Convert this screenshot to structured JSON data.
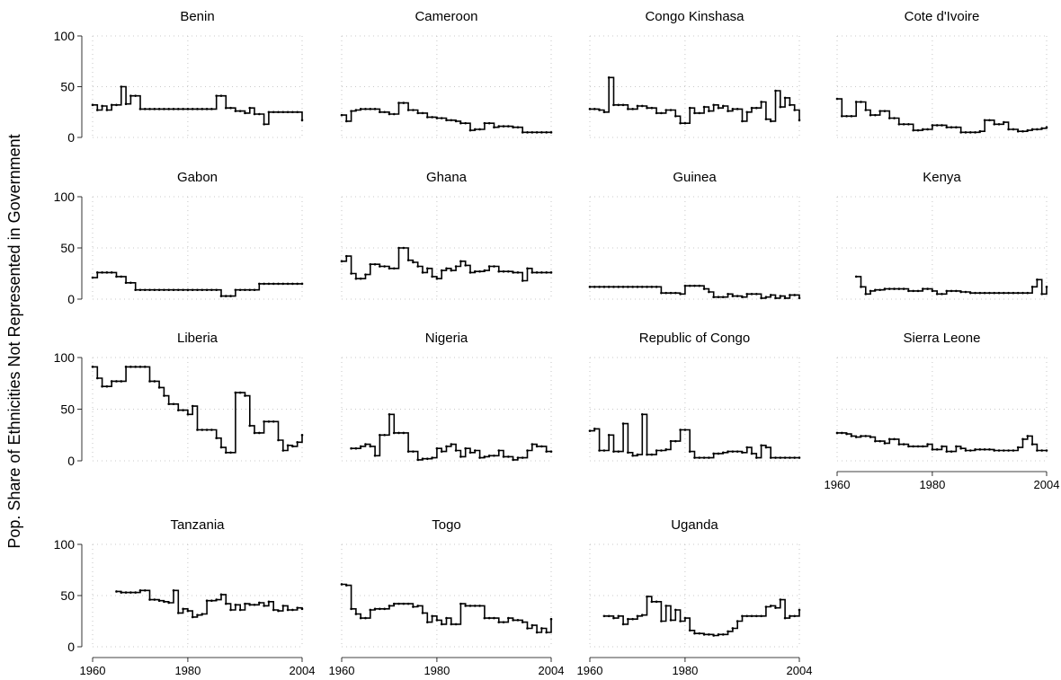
{
  "figure": {
    "ylabel": "Pop. Share of Ethnicities Not Represented in Government",
    "x_ticks": [
      1960,
      1980,
      2004
    ],
    "y_ticks": [
      0,
      50,
      100
    ],
    "xlim": [
      1960,
      2004
    ],
    "ylim": [
      0,
      100
    ]
  },
  "chart_data": [
    {
      "type": "line",
      "style": "step",
      "title": "Benin",
      "x_range": [
        1960,
        2004
      ],
      "x": [
        1960,
        1961,
        1962,
        1963,
        1964,
        1966,
        1967,
        1968,
        1970,
        1984,
        1986,
        1988,
        1990,
        1992,
        1993,
        1994,
        1996,
        1997,
        2004
      ],
      "y": [
        32,
        27,
        31,
        27,
        32,
        50,
        33,
        41,
        28,
        28,
        41,
        29,
        26,
        24,
        29,
        23,
        13,
        25,
        17
      ]
    },
    {
      "type": "line",
      "style": "step",
      "title": "Cameroon",
      "x_range": [
        1960,
        2004
      ],
      "x": [
        1960,
        1961,
        1962,
        1963,
        1964,
        1966,
        1968,
        1970,
        1972,
        1974,
        1976,
        1978,
        1980,
        1982,
        1984,
        1985,
        1987,
        1988,
        1990,
        1992,
        1993,
        1996,
        1998,
        2004
      ],
      "y": [
        22,
        16,
        26,
        27,
        28,
        28,
        25,
        23,
        34,
        27,
        24,
        20,
        19,
        17,
        16,
        14,
        7,
        8,
        14,
        10,
        11,
        10,
        5,
        5
      ]
    },
    {
      "type": "line",
      "style": "step",
      "title": "Congo Kinshasa",
      "x_range": [
        1960,
        2004
      ],
      "x": [
        1960,
        1962,
        1963,
        1964,
        1965,
        1966,
        1968,
        1970,
        1972,
        1974,
        1976,
        1978,
        1979,
        1980,
        1981,
        1982,
        1984,
        1985,
        1986,
        1987,
        1988,
        1989,
        1990,
        1992,
        1993,
        1994,
        1996,
        1997,
        1998,
        1999,
        2000,
        2001,
        2002,
        2003,
        2004
      ],
      "y": [
        28,
        27,
        25,
        59,
        32,
        32,
        28,
        31,
        29,
        24,
        27,
        21,
        14,
        14,
        29,
        24,
        30,
        26,
        32,
        29,
        31,
        26,
        28,
        16,
        25,
        29,
        35,
        18,
        16,
        46,
        30,
        39,
        32,
        27,
        17
      ]
    },
    {
      "type": "line",
      "style": "step",
      "title": "Cote d'Ivoire",
      "x_range": [
        1960,
        2004
      ],
      "x": [
        1960,
        1961,
        1963,
        1964,
        1966,
        1967,
        1969,
        1971,
        1973,
        1976,
        1978,
        1980,
        1983,
        1986,
        1990,
        1991,
        1993,
        1995,
        1996,
        1998,
        2000,
        2001,
        2003,
        2004
      ],
      "y": [
        38,
        21,
        21,
        35,
        27,
        22,
        26,
        19,
        13,
        7,
        8,
        12,
        10,
        5,
        6,
        17,
        13,
        15,
        8,
        6,
        7,
        8,
        9,
        10
      ]
    },
    {
      "type": "line",
      "style": "step",
      "title": "Gabon",
      "x_range": [
        1960,
        2004
      ],
      "x": [
        1960,
        1961,
        1965,
        1967,
        1969,
        1985,
        1987,
        1990,
        1995,
        1996,
        2004
      ],
      "y": [
        21,
        26,
        22,
        16,
        9,
        9,
        3,
        9,
        15,
        15,
        15
      ]
    },
    {
      "type": "line",
      "style": "step",
      "title": "Ghana",
      "x_range": [
        1960,
        2004
      ],
      "x": [
        1960,
        1961,
        1962,
        1963,
        1965,
        1966,
        1968,
        1970,
        1972,
        1974,
        1975,
        1976,
        1977,
        1978,
        1979,
        1980,
        1981,
        1982,
        1983,
        1984,
        1985,
        1986,
        1987,
        1988,
        1990,
        1991,
        1993,
        1996,
        1998,
        1999,
        2000,
        2004
      ],
      "y": [
        37,
        42,
        25,
        20,
        24,
        34,
        32,
        30,
        50,
        38,
        36,
        32,
        26,
        30,
        22,
        20,
        28,
        30,
        28,
        32,
        37,
        33,
        26,
        27,
        28,
        32,
        27,
        26,
        18,
        30,
        26,
        26
      ]
    },
    {
      "type": "line",
      "style": "step",
      "title": "Guinea",
      "x_range": [
        1960,
        2004
      ],
      "x": [
        1960,
        1966,
        1975,
        1978,
        1979,
        1980,
        1984,
        1985,
        1986,
        1988,
        1989,
        1990,
        1992,
        1993,
        1996,
        1997,
        1998,
        1999,
        2000,
        2001,
        2002,
        2003,
        2004
      ],
      "y": [
        12,
        12,
        6,
        6,
        5,
        13,
        10,
        7,
        2,
        2,
        5,
        3,
        2,
        5,
        1,
        2,
        4,
        1,
        3,
        1,
        4,
        4,
        1
      ]
    },
    {
      "type": "line",
      "style": "step",
      "title": "Kenya",
      "x_range": [
        1960,
        2004
      ],
      "x": [
        1964,
        1965,
        1966,
        1967,
        1968,
        1970,
        1972,
        1975,
        1976,
        1978,
        1979,
        1980,
        1981,
        1983,
        1984,
        1986,
        1988,
        1994,
        2001,
        2002,
        2003,
        2004
      ],
      "y": [
        22,
        12,
        5,
        8,
        9,
        10,
        10,
        8,
        8,
        10,
        10,
        8,
        5,
        8,
        8,
        7,
        6,
        6,
        12,
        19,
        5,
        12
      ]
    },
    {
      "type": "line",
      "style": "step",
      "title": "Liberia",
      "x_range": [
        1960,
        2004
      ],
      "x": [
        1960,
        1961,
        1962,
        1964,
        1966,
        1967,
        1971,
        1972,
        1973,
        1974,
        1975,
        1976,
        1978,
        1979,
        1980,
        1981,
        1982,
        1986,
        1987,
        1988,
        1989,
        1990,
        1992,
        1993,
        1994,
        1996,
        1998,
        1999,
        2000,
        2001,
        2002,
        2003,
        2004
      ],
      "y": [
        91,
        80,
        72,
        77,
        77,
        91,
        91,
        77,
        77,
        71,
        63,
        55,
        49,
        49,
        45,
        53,
        30,
        22,
        13,
        8,
        8,
        66,
        63,
        34,
        27,
        38,
        38,
        20,
        10,
        15,
        14,
        18,
        25
      ]
    },
    {
      "type": "line",
      "style": "step",
      "title": "Nigeria",
      "x_range": [
        1960,
        2004
      ],
      "x": [
        1962,
        1964,
        1965,
        1966,
        1967,
        1968,
        1969,
        1970,
        1971,
        1972,
        1974,
        1975,
        1976,
        1977,
        1979,
        1980,
        1981,
        1982,
        1983,
        1984,
        1985,
        1986,
        1987,
        1988,
        1989,
        1990,
        1991,
        1993,
        1994,
        1996,
        1997,
        1998,
        1999,
        2000,
        2001,
        2002,
        2003,
        2004
      ],
      "y": [
        12,
        14,
        16,
        14,
        5,
        25,
        25,
        45,
        27,
        27,
        9,
        9,
        1,
        2,
        3,
        12,
        9,
        14,
        16,
        10,
        4,
        12,
        8,
        10,
        3,
        4,
        5,
        10,
        4,
        1,
        3,
        3,
        10,
        16,
        14,
        14,
        9,
        9
      ]
    },
    {
      "type": "line",
      "style": "step",
      "title": "Republic of Congo",
      "x_range": [
        1960,
        2004
      ],
      "x": [
        1960,
        1961,
        1962,
        1963,
        1964,
        1965,
        1967,
        1968,
        1969,
        1970,
        1971,
        1972,
        1973,
        1974,
        1976,
        1977,
        1978,
        1979,
        1980,
        1981,
        1982,
        1984,
        1986,
        1988,
        1989,
        1990,
        1992,
        1993,
        1994,
        1995,
        1996,
        1997,
        1998,
        1999,
        2000,
        2003,
        2004
      ],
      "y": [
        29,
        31,
        10,
        10,
        25,
        9,
        36,
        8,
        5,
        6,
        45,
        6,
        6,
        10,
        11,
        19,
        19,
        30,
        30,
        9,
        3,
        3,
        7,
        8,
        9,
        9,
        8,
        13,
        7,
        3,
        15,
        13,
        3,
        3,
        3,
        3,
        3
      ]
    },
    {
      "type": "line",
      "style": "step",
      "title": "Sierra Leone",
      "x_range": [
        1960,
        2004
      ],
      "x": [
        1960,
        1962,
        1963,
        1964,
        1965,
        1967,
        1968,
        1969,
        1970,
        1971,
        1973,
        1974,
        1975,
        1977,
        1979,
        1980,
        1981,
        1982,
        1983,
        1985,
        1986,
        1987,
        1989,
        1990,
        1991,
        1993,
        1994,
        1996,
        1998,
        1999,
        2000,
        2001,
        2002,
        2004
      ],
      "y": [
        27,
        26,
        24,
        23,
        24,
        23,
        19,
        19,
        17,
        21,
        16,
        16,
        14,
        14,
        16,
        11,
        11,
        14,
        9,
        14,
        12,
        10,
        11,
        11,
        11,
        10,
        10,
        10,
        13,
        21,
        24,
        16,
        10,
        10
      ]
    },
    {
      "type": "line",
      "style": "step",
      "title": "Tanzania",
      "x_range": [
        1960,
        2004
      ],
      "x": [
        1965,
        1966,
        1970,
        1972,
        1974,
        1975,
        1976,
        1977,
        1978,
        1979,
        1980,
        1981,
        1982,
        1983,
        1984,
        1986,
        1987,
        1988,
        1989,
        1990,
        1991,
        1992,
        1993,
        1995,
        1996,
        1997,
        1998,
        1999,
        2000,
        2001,
        2003,
        2004
      ],
      "y": [
        54,
        53,
        55,
        46,
        45,
        44,
        43,
        55,
        33,
        37,
        35,
        29,
        31,
        32,
        45,
        46,
        51,
        42,
        36,
        41,
        36,
        42,
        41,
        43,
        40,
        44,
        36,
        35,
        40,
        36,
        38,
        37
      ]
    },
    {
      "type": "line",
      "style": "step",
      "title": "Togo",
      "x_range": [
        1960,
        2004
      ],
      "x": [
        1960,
        1961,
        1962,
        1963,
        1964,
        1965,
        1966,
        1967,
        1970,
        1971,
        1975,
        1976,
        1977,
        1978,
        1979,
        1980,
        1981,
        1982,
        1983,
        1984,
        1985,
        1986,
        1990,
        1991,
        1992,
        1993,
        1995,
        1996,
        1998,
        1999,
        2000,
        2001,
        2002,
        2003,
        2004
      ],
      "y": [
        61,
        60,
        37,
        32,
        28,
        28,
        36,
        37,
        40,
        42,
        39,
        40,
        33,
        24,
        30,
        26,
        22,
        28,
        22,
        22,
        42,
        40,
        28,
        28,
        28,
        24,
        28,
        26,
        24,
        18,
        21,
        14,
        18,
        14,
        27
      ]
    },
    {
      "type": "line",
      "style": "step",
      "title": "Uganda",
      "x_range": [
        1960,
        2004
      ],
      "x": [
        1963,
        1965,
        1966,
        1967,
        1968,
        1969,
        1970,
        1971,
        1972,
        1973,
        1975,
        1976,
        1977,
        1978,
        1979,
        1980,
        1981,
        1982,
        1984,
        1985,
        1986,
        1987,
        1988,
        1989,
        1990,
        1991,
        1992,
        1994,
        1996,
        1997,
        1998,
        1999,
        2000,
        2001,
        2002,
        2004
      ],
      "y": [
        30,
        28,
        30,
        22,
        27,
        27,
        30,
        31,
        49,
        44,
        25,
        40,
        26,
        36,
        25,
        28,
        16,
        13,
        12,
        12,
        11,
        12,
        12,
        15,
        18,
        25,
        30,
        30,
        30,
        39,
        40,
        38,
        46,
        28,
        30,
        36
      ]
    }
  ]
}
